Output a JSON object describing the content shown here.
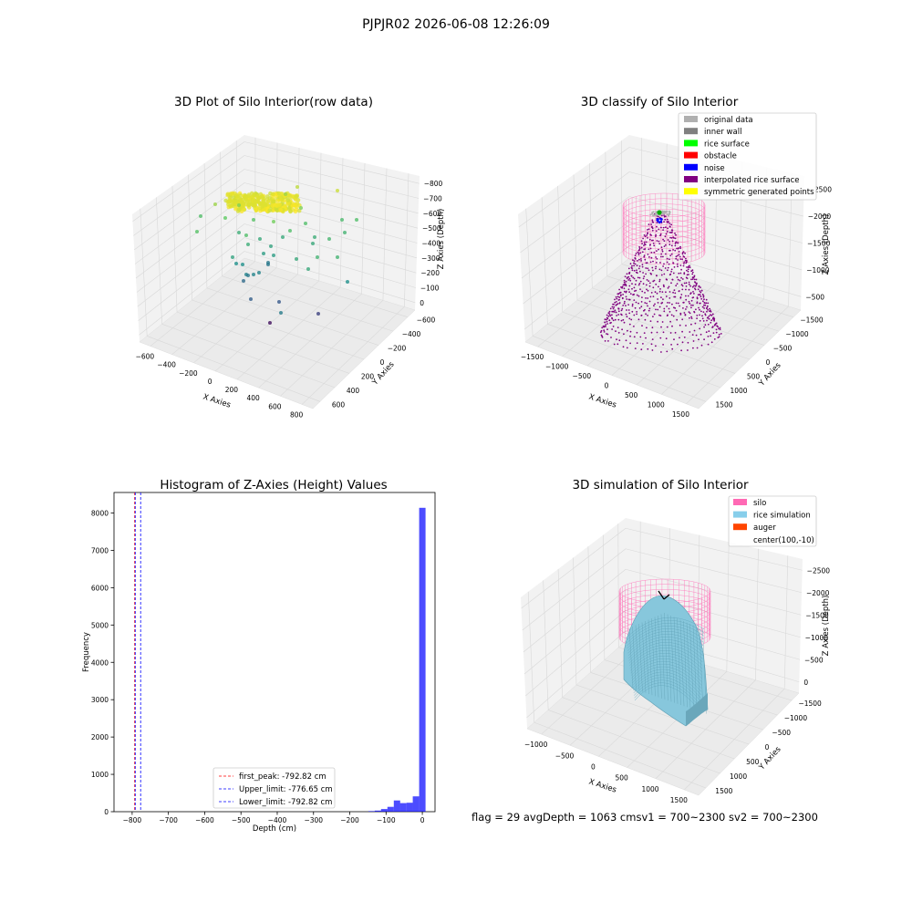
{
  "suptitle": "PJPJR02 2026-06-08 12:26:09",
  "footer": "flag = 29  avgDepth = 1063 cmsv1 = 700~2300  sv2 = 700~2300",
  "chart_data": [
    {
      "type": "scatter",
      "title": "3D Plot of Silo Interior(row data)",
      "xlabel": "X Axies",
      "ylabel": "Y Axies",
      "zlabel": "Z Axies (Depth)",
      "xticks": [
        "−600",
        "−400",
        "−200",
        "0",
        "200",
        "400",
        "600",
        "800"
      ],
      "yticks": [
        "600",
        "400",
        "200",
        "0",
        "−200",
        "−400",
        "−600"
      ],
      "zticks": [
        "0",
        "−100",
        "−200",
        "−300",
        "−400",
        "−500",
        "−600",
        "−700",
        "−800"
      ],
      "colormap": "viridis",
      "description_points": "dense yellow cluster near top (z≈-100 to -200), sparse green/blue/purple points below down to z≈-800"
    },
    {
      "type": "scatter",
      "title": "3D classify of Silo Interior",
      "xlabel": "X Axies",
      "ylabel": "Y Axies",
      "zlabel": "Z Axies (Depth)",
      "xticks": [
        "−1500",
        "−1000",
        "−500",
        "0",
        "500",
        "1000",
        "1500"
      ],
      "yticks": [
        "1500",
        "1000",
        "500",
        "0",
        "−500",
        "−1000",
        "−1500"
      ],
      "zticks": [
        "−500",
        "−1000",
        "−1500",
        "−2000",
        "−2500"
      ],
      "legend": [
        {
          "name": "original data",
          "color": "#b0b0b0"
        },
        {
          "name": "inner wall",
          "color": "#808080"
        },
        {
          "name": "rice surface",
          "color": "#00ff00"
        },
        {
          "name": "obstacle",
          "color": "#ff0000"
        },
        {
          "name": "noise",
          "color": "#0000ff"
        },
        {
          "name": "interpolated rice surface",
          "color": "#800080"
        },
        {
          "name": "symmetric generated points",
          "color": "#ffff00"
        }
      ]
    },
    {
      "type": "bar",
      "title": "Histogram of Z-Axies (Height) Values",
      "xlabel": "Depth (cm)",
      "ylabel": "Frequency",
      "xlim": [
        -850,
        35
      ],
      "ylim": [
        0,
        8550
      ],
      "xticks": [
        -800,
        -700,
        -600,
        -500,
        -400,
        -300,
        -200,
        -100,
        0
      ],
      "yticks": [
        0,
        1000,
        2000,
        3000,
        4000,
        5000,
        6000,
        7000,
        8000
      ],
      "bin_width": 17.5,
      "bins": [
        {
          "x": -140,
          "value": 15
        },
        {
          "x": -122.5,
          "value": 30
        },
        {
          "x": -105,
          "value": 70
        },
        {
          "x": -87.5,
          "value": 130
        },
        {
          "x": -70,
          "value": 300
        },
        {
          "x": -52.5,
          "value": 230
        },
        {
          "x": -35,
          "value": 240
        },
        {
          "x": -17.5,
          "value": 410
        },
        {
          "x": 0,
          "value": 8140
        }
      ],
      "color": "#0000ff",
      "vlines": [
        {
          "name": "first_peak: -792.82 cm",
          "x": -792.82,
          "color": "#ff0000"
        },
        {
          "name": "Upper_limit: -776.65 cm",
          "x": -776.65,
          "color": "#0000ff"
        },
        {
          "name": "Lower_limit: -792.82 cm",
          "x": -792.82,
          "color": "#0000ff"
        }
      ],
      "legend_position": "lower center"
    },
    {
      "type": "area",
      "title": "3D simulation of Silo Interior",
      "xlabel": "X Axies",
      "ylabel": "Y Axies",
      "zlabel": "Z Axies (Depth)",
      "xticks": [
        "−1000",
        "−500",
        "0",
        "500",
        "1000",
        "1500"
      ],
      "yticks": [
        "1500",
        "1000",
        "500",
        "0",
        "−500",
        "−1000",
        "−1500"
      ],
      "zticks": [
        "0",
        "−500",
        "−1000",
        "−1500",
        "−2000",
        "−2500"
      ],
      "legend": [
        {
          "name": "silo",
          "color": "#ff69b4"
        },
        {
          "name": "rice simulation",
          "color": "#87ceeb"
        },
        {
          "name": "auger",
          "color": "#ff4500"
        },
        {
          "name": "center(100,-10)",
          "color": ""
        }
      ]
    }
  ]
}
